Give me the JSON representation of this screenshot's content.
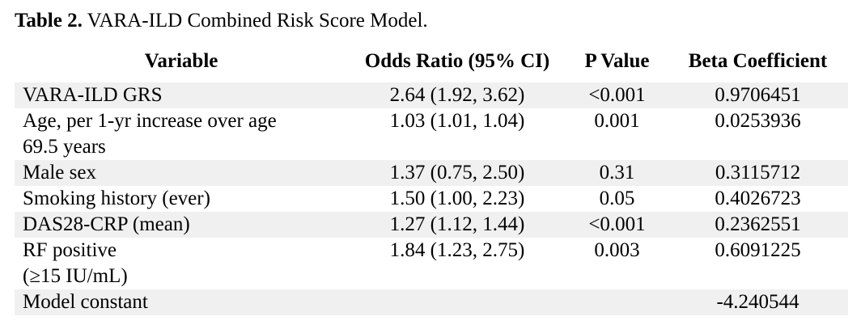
{
  "caption": {
    "label": "Table 2.",
    "text": " VARA-ILD Combined Risk Score Model."
  },
  "table": {
    "columns": [
      "Variable",
      "Odds Ratio (95% CI)",
      "P Value",
      "Beta Coefficient"
    ],
    "rows": [
      {
        "variable": "VARA-ILD GRS",
        "odds_ratio": "2.64 (1.92, 3.62)",
        "p_value": "<0.001",
        "beta_coefficient": "0.9706451",
        "shaded": true
      },
      {
        "variable": "Age, per 1-yr increase over age\n69.5 years",
        "odds_ratio": "1.03 (1.01, 1.04)",
        "p_value": "0.001",
        "beta_coefficient": "0.0253936",
        "shaded": false
      },
      {
        "variable": "Male sex",
        "odds_ratio": "1.37 (0.75, 2.50)",
        "p_value": "0.31",
        "beta_coefficient": "0.3115712",
        "shaded": true
      },
      {
        "variable": "Smoking history (ever)",
        "odds_ratio": "1.50 (1.00, 2.23)",
        "p_value": "0.05",
        "beta_coefficient": "0.4026723",
        "shaded": false
      },
      {
        "variable": "DAS28-CRP (mean)",
        "odds_ratio": "1.27 (1.12, 1.44)",
        "p_value": "<0.001",
        "beta_coefficient": "0.2362551",
        "shaded": true
      },
      {
        "variable": "RF positive\n(≥15 IU/mL)",
        "odds_ratio": "1.84 (1.23, 2.75)",
        "p_value": "0.003",
        "beta_coefficient": "0.6091225",
        "shaded": false
      },
      {
        "variable": "Model constant",
        "odds_ratio": "",
        "p_value": "",
        "beta_coefficient": "-4.240544",
        "shaded": true
      }
    ],
    "colors": {
      "row_shading": "#f0f0f0",
      "text": "#000000",
      "background": "#ffffff"
    }
  }
}
